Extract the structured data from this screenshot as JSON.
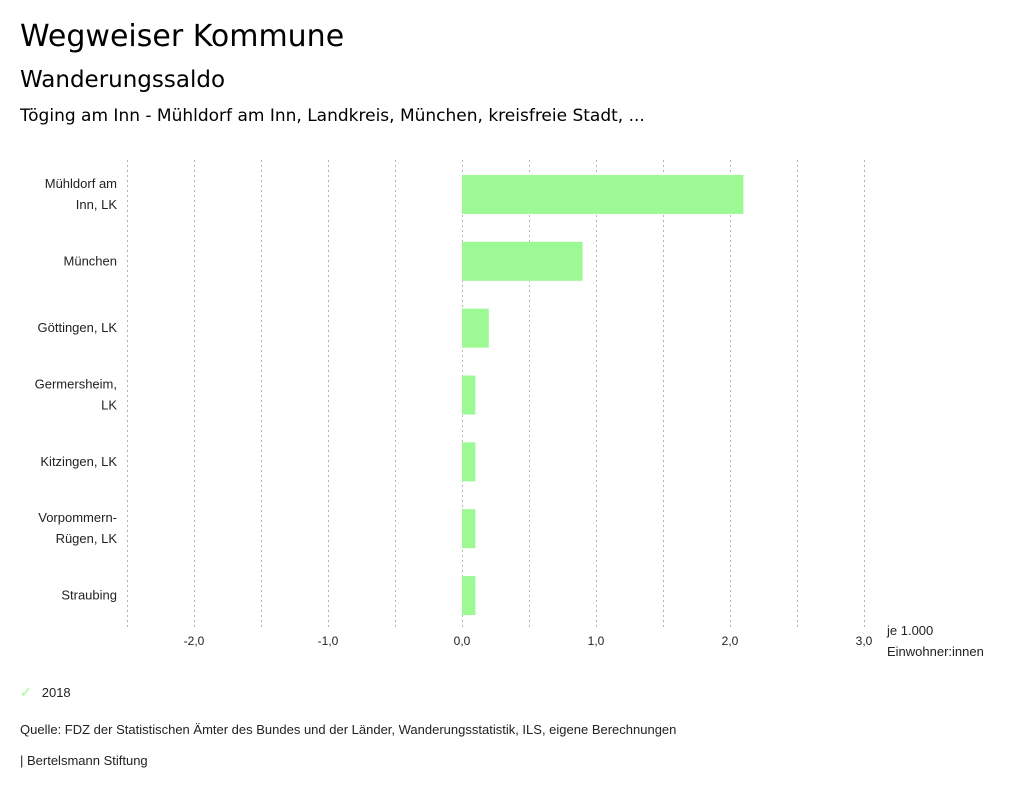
{
  "header": {
    "title": "Wegweiser Kommune",
    "subtitle": "Wanderungssaldo",
    "region": "Töging am Inn - Mühldorf am Inn, Landkreis, München, kreisfreie Stadt, ..."
  },
  "chart_data": {
    "type": "bar",
    "orientation": "horizontal",
    "title": "Wanderungssaldo",
    "categories": [
      [
        "Mühldorf am",
        "Inn, LK"
      ],
      [
        "München"
      ],
      [
        "Göttingen, LK"
      ],
      [
        "Germersheim,",
        "LK"
      ],
      [
        "Kitzingen, LK"
      ],
      [
        "Vorpommern-",
        "Rügen, LK"
      ],
      [
        "Straubing"
      ]
    ],
    "series": [
      {
        "name": "2018",
        "color": "#9cf994",
        "values": [
          2.1,
          0.9,
          0.2,
          0.1,
          0.1,
          0.1,
          0.1
        ]
      }
    ],
    "xlim": [
      -2.5,
      3.0
    ],
    "xticks": [
      -2.0,
      -1.0,
      0.0,
      1.0,
      2.0,
      3.0
    ],
    "xtick_labels": [
      "-2,0",
      "-1,0",
      "0,0",
      "1,0",
      "2,0",
      "3,0"
    ],
    "gridlines": [
      -2.5,
      -2.0,
      -1.5,
      -1.0,
      -0.5,
      0.0,
      0.5,
      1.0,
      1.5,
      2.0,
      2.5,
      3.0
    ],
    "xlabel": [
      "je 1.000",
      "Einwohner:innen"
    ],
    "grid": true,
    "legend_position": "bottom-left"
  },
  "legend": {
    "label": "2018",
    "icon": "check-icon",
    "color": "#9cf994"
  },
  "footer": {
    "source": "Quelle: FDZ der Statistischen Ämter des Bundes und der Länder, Wanderungsstatistik, ILS, eigene Berechnungen",
    "credit": "| Bertelsmann Stiftung"
  }
}
